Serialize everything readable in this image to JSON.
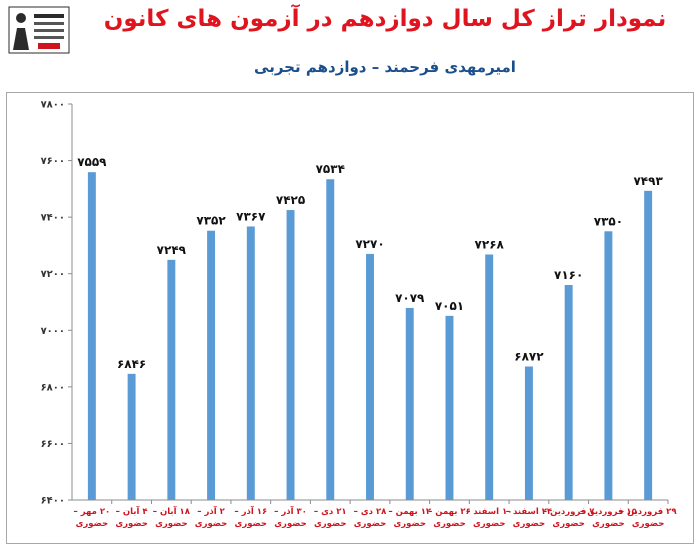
{
  "header": {
    "title": "نمودار تراز کل سال دوازدهم در آزمون های کانون",
    "subtitle": "امیرمهدی فرحمند – دوازدهم تجربی"
  },
  "logo": {
    "icon": "school-logo-icon",
    "color": "#2b2b2b"
  },
  "chart_data": {
    "type": "bar",
    "title": "نمودار تراز کل سال دوازدهم در آزمون های کانون",
    "subtitle": "امیرمهدی فرحمند – دوازدهم تجربی",
    "categories": [
      [
        "۲۰ مهر –",
        "حضوری"
      ],
      [
        "۴ آبان –",
        "حضوری"
      ],
      [
        "۱۸ آبان –",
        "حضوری"
      ],
      [
        "۲ آذر –",
        "حضوری"
      ],
      [
        "۱۶ آذر –",
        "حضوری"
      ],
      [
        "۳۰ آذر –",
        "حضوری"
      ],
      [
        "۲۱ دی –",
        "حضوری"
      ],
      [
        "۲۸ دی –",
        "حضوری"
      ],
      [
        "۱۲ بهمن –",
        "حضوری"
      ],
      [
        "۲۶ بهمن –",
        "حضوری"
      ],
      [
        "۱۰ اسفند –",
        "حضوری"
      ],
      [
        "۲۴ اسفند –",
        "حضوری"
      ],
      [
        "۷ فروردین –",
        "حضوری"
      ],
      [
        "۱۵ فروردین –",
        "حضوری"
      ],
      [
        "۲۹ فروردین –",
        "حضوری"
      ]
    ],
    "values": [
      7559,
      6846,
      7249,
      7352,
      7367,
      7425,
      7534,
      7270,
      7079,
      7051,
      7268,
      6872,
      7160,
      7350,
      7493
    ],
    "value_labels": [
      "۷۵۵۹",
      "۶۸۴۶",
      "۷۲۴۹",
      "۷۳۵۲",
      "۷۳۶۷",
      "۷۴۲۵",
      "۷۵۳۴",
      "۷۲۷۰",
      "۷۰۷۹",
      "۷۰۵۱",
      "۷۲۶۸",
      "۶۸۷۲",
      "۷۱۶۰",
      "۷۳۵۰",
      "۷۴۹۳"
    ],
    "ylim": [
      6400,
      7800
    ],
    "yticks": [
      6400,
      6600,
      6800,
      7000,
      7200,
      7400,
      7600,
      7800
    ],
    "ytick_labels": [
      "۶۴۰۰",
      "۶۶۰۰",
      "۶۸۰۰",
      "۷۰۰۰",
      "۷۲۰۰",
      "۷۴۰۰",
      "۷۶۰۰",
      "۷۸۰۰"
    ],
    "grid": false,
    "bar_color": "#5b9bd5",
    "label_color": "#d0141e"
  }
}
